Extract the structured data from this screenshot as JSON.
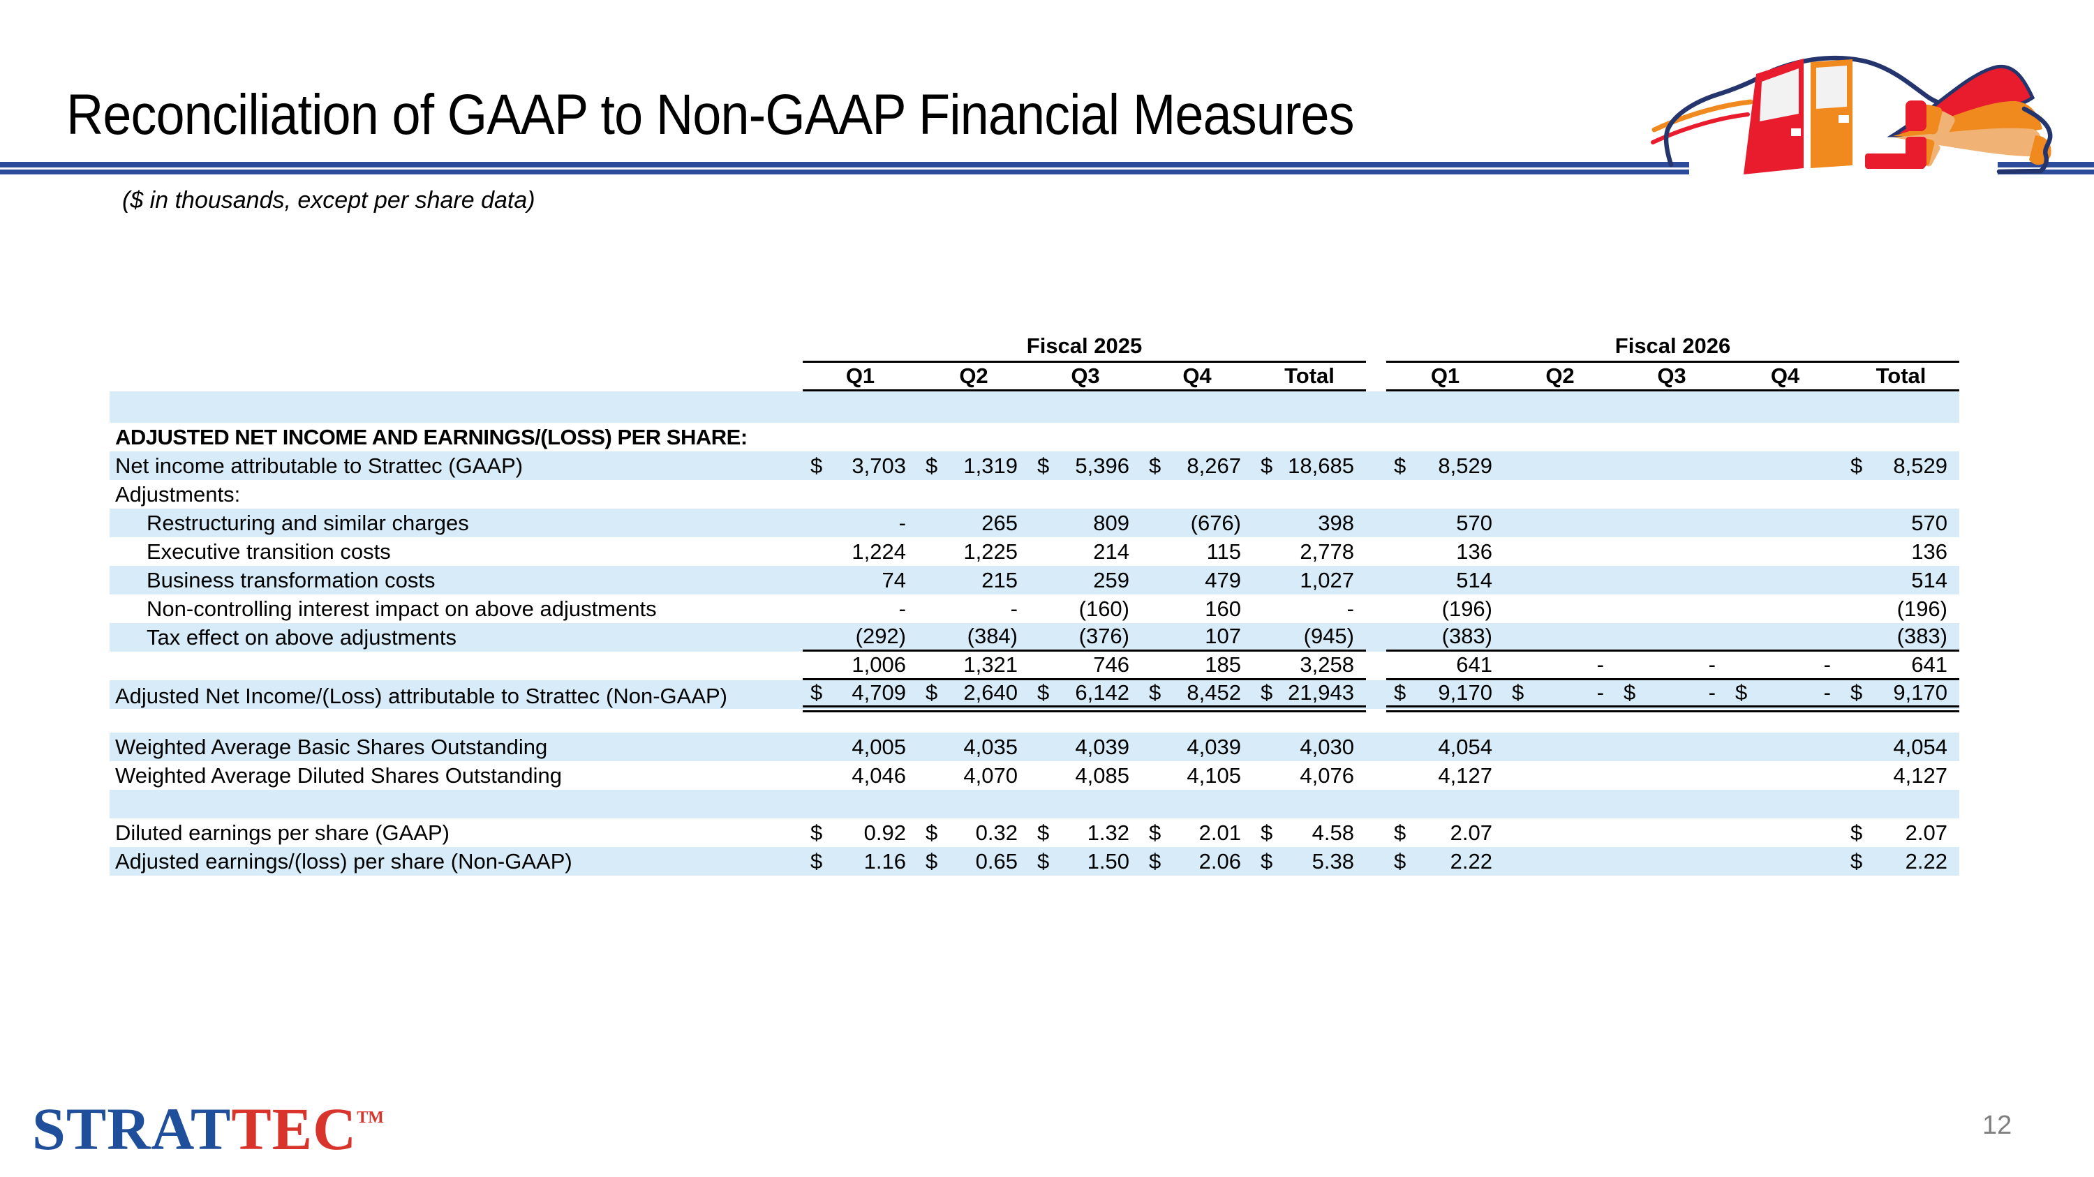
{
  "slide": {
    "title": "Reconciliation of GAAP to Non-GAAP Financial Measures",
    "subtitle": "($ in thousands, except per share data)",
    "page_number": "12"
  },
  "logo": {
    "part_blue": "STRAT",
    "part_red": "TEC",
    "tm": "TM"
  },
  "colors": {
    "stripe_blue": "#d7ecf8",
    "rule_navy": "#2d4b9b",
    "logo_blue": "#1f4e9b",
    "logo_red": "#d9342b",
    "car_navy": "#24356e",
    "car_red": "#e81c2d",
    "car_orange": "#f08a1e",
    "car_tan": "#f0b375",
    "page_number_gray": "#7f7f7f"
  },
  "table": {
    "groups": [
      {
        "label": "Fiscal 2025"
      },
      {
        "label": "Fiscal 2026"
      }
    ],
    "columns": [
      "Q1",
      "Q2",
      "Q3",
      "Q4",
      "Total"
    ],
    "rows": [
      {
        "type": "blank",
        "stripe": true,
        "h": 45
      },
      {
        "label": "ADJUSTED NET INCOME AND EARNINGS/(LOSS) PER SHARE:",
        "hdr": true,
        "stripe": false,
        "fy25": [
          null,
          null,
          null,
          null,
          null
        ],
        "fy26": [
          null,
          null,
          null,
          null,
          null
        ]
      },
      {
        "label": "Net income attributable to Strattec (GAAP)",
        "stripe": true,
        "fy25": [
          {
            "d": "$",
            "v": "3,703"
          },
          {
            "d": "$",
            "v": "1,319"
          },
          {
            "d": "$",
            "v": "5,396"
          },
          {
            "d": "$",
            "v": "8,267"
          },
          {
            "d": "$",
            "v": "18,685"
          }
        ],
        "fy26": [
          {
            "d": "$",
            "v": "8,529"
          },
          null,
          null,
          null,
          {
            "d": "$",
            "v": "8,529"
          }
        ]
      },
      {
        "label": "Adjustments:",
        "stripe": false,
        "fy25": [
          null,
          null,
          null,
          null,
          null
        ],
        "fy26": [
          null,
          null,
          null,
          null,
          null
        ]
      },
      {
        "label": "Restructuring and similar charges",
        "ind": true,
        "stripe": true,
        "fy25": [
          {
            "v": "-"
          },
          {
            "v": "265"
          },
          {
            "v": "809"
          },
          {
            "v": "(676)"
          },
          {
            "v": "398"
          }
        ],
        "fy26": [
          {
            "v": "570"
          },
          null,
          null,
          null,
          {
            "v": "570"
          }
        ]
      },
      {
        "label": "Executive transition costs",
        "ind": true,
        "stripe": false,
        "fy25": [
          {
            "v": "1,224"
          },
          {
            "v": "1,225"
          },
          {
            "v": "214"
          },
          {
            "v": "115"
          },
          {
            "v": "2,778"
          }
        ],
        "fy26": [
          {
            "v": "136"
          },
          null,
          null,
          null,
          {
            "v": "136"
          }
        ]
      },
      {
        "label": "Business transformation costs",
        "ind": true,
        "stripe": true,
        "fy25": [
          {
            "v": "74"
          },
          {
            "v": "215"
          },
          {
            "v": "259"
          },
          {
            "v": "479"
          },
          {
            "v": "1,027"
          }
        ],
        "fy26": [
          {
            "v": "514"
          },
          null,
          null,
          null,
          {
            "v": "514"
          }
        ]
      },
      {
        "label": "Non-controlling interest impact on above adjustments",
        "ind": true,
        "stripe": false,
        "fy25": [
          {
            "v": "-"
          },
          {
            "v": "-"
          },
          {
            "v": "(160)"
          },
          {
            "v": "160"
          },
          {
            "v": "-"
          }
        ],
        "fy26": [
          {
            "v": "(196)"
          },
          null,
          null,
          null,
          {
            "v": "(196)"
          }
        ]
      },
      {
        "label": "Tax effect on above adjustments",
        "ind": true,
        "stripe": true,
        "rule": "s",
        "fy25": [
          {
            "v": "(292)"
          },
          {
            "v": "(384)"
          },
          {
            "v": "(376)"
          },
          {
            "v": "107"
          },
          {
            "v": "(945)"
          }
        ],
        "fy26": [
          {
            "v": "(383)"
          },
          null,
          null,
          null,
          {
            "v": "(383)"
          }
        ]
      },
      {
        "label": "",
        "stripe": false,
        "rule": "s",
        "fy25": [
          {
            "v": "1,006"
          },
          {
            "v": "1,321"
          },
          {
            "v": "746"
          },
          {
            "v": "185"
          },
          {
            "v": "3,258"
          }
        ],
        "fy26": [
          {
            "v": "641"
          },
          {
            "v": "-"
          },
          {
            "v": "-"
          },
          {
            "v": "-"
          },
          {
            "v": "641"
          }
        ]
      },
      {
        "label": "Adjusted Net Income/(Loss) attributable to Strattec (Non-GAAP)",
        "stripe": true,
        "rule": "d",
        "fy25": [
          {
            "d": "$",
            "v": "4,709"
          },
          {
            "d": "$",
            "v": "2,640"
          },
          {
            "d": "$",
            "v": "6,142"
          },
          {
            "d": "$",
            "v": "8,452"
          },
          {
            "d": "$",
            "v": "21,943"
          }
        ],
        "fy26": [
          {
            "d": "$",
            "v": "9,170"
          },
          {
            "d": "$",
            "v": "-"
          },
          {
            "d": "$",
            "v": "-"
          },
          {
            "d": "$",
            "v": "-"
          },
          {
            "d": "$",
            "v": "9,170"
          }
        ]
      },
      {
        "type": "blank",
        "stripe": false,
        "h": 34
      },
      {
        "label": "Weighted Average Basic Shares Outstanding",
        "stripe": true,
        "fy25": [
          {
            "v": "4,005"
          },
          {
            "v": "4,035"
          },
          {
            "v": "4,039"
          },
          {
            "v": "4,039"
          },
          {
            "v": "4,030"
          }
        ],
        "fy26": [
          {
            "v": "4,054"
          },
          null,
          null,
          null,
          {
            "v": "4,054"
          }
        ]
      },
      {
        "label": "Weighted Average Diluted Shares Outstanding",
        "stripe": false,
        "fy25": [
          {
            "v": "4,046"
          },
          {
            "v": "4,070"
          },
          {
            "v": "4,085"
          },
          {
            "v": "4,105"
          },
          {
            "v": "4,076"
          }
        ],
        "fy26": [
          {
            "v": "4,127"
          },
          null,
          null,
          null,
          {
            "v": "4,127"
          }
        ]
      },
      {
        "type": "blank",
        "stripe": true,
        "h": 41
      },
      {
        "label": "Diluted earnings per share (GAAP)",
        "stripe": false,
        "fy25": [
          {
            "d": "$",
            "v": "0.92"
          },
          {
            "d": "$",
            "v": "0.32"
          },
          {
            "d": "$",
            "v": "1.32"
          },
          {
            "d": "$",
            "v": "2.01"
          },
          {
            "d": "$",
            "v": "4.58"
          }
        ],
        "fy26": [
          {
            "d": "$",
            "v": "2.07"
          },
          null,
          null,
          null,
          {
            "d": "$",
            "v": "2.07"
          }
        ]
      },
      {
        "label": "Adjusted earnings/(loss) per share (Non-GAAP)",
        "stripe": true,
        "fy25": [
          {
            "d": "$",
            "v": "1.16"
          },
          {
            "d": "$",
            "v": "0.65"
          },
          {
            "d": "$",
            "v": "1.50"
          },
          {
            "d": "$",
            "v": "2.06"
          },
          {
            "d": "$",
            "v": "5.38"
          }
        ],
        "fy26": [
          {
            "d": "$",
            "v": "2.22"
          },
          null,
          null,
          null,
          {
            "d": "$",
            "v": "2.22"
          }
        ]
      }
    ]
  }
}
